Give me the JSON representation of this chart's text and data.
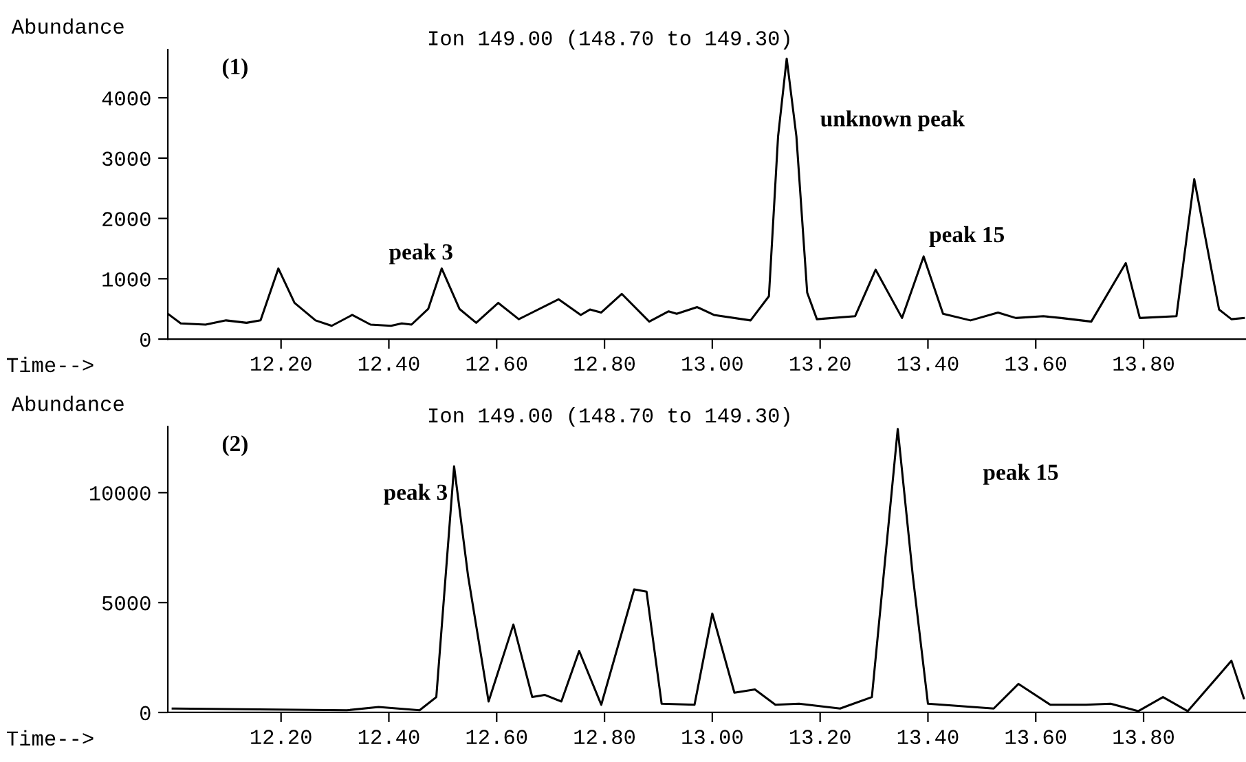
{
  "chart_data": [
    {
      "type": "line",
      "title": "Ion 149.00 (148.70 to 149.30)",
      "xlabel": "Time-->",
      "ylabel": "Abundance",
      "annotations": [
        "(1)",
        "peak 3",
        "unknown peak",
        "peak 15"
      ],
      "series": [
        {
          "color": "#000000",
          "x": [
            11.99,
            12.014,
            12.06,
            12.098,
            12.136,
            12.162,
            12.195,
            12.225,
            12.264,
            12.294,
            12.332,
            12.366,
            12.404,
            12.424,
            12.442,
            12.473,
            12.498,
            12.531,
            12.562,
            12.603,
            12.641,
            12.715,
            12.756,
            12.773,
            12.794,
            12.832,
            12.883,
            12.919,
            12.934,
            12.972,
            13.003,
            13.071,
            13.105,
            13.122,
            13.138,
            13.156,
            13.176,
            13.194,
            13.265,
            13.303,
            13.352,
            13.392,
            13.428,
            13.479,
            13.53,
            13.563,
            13.614,
            13.647,
            13.703,
            13.767,
            13.793,
            13.861,
            13.894,
            13.94,
            13.963,
            13.986
          ],
          "values": [
            420,
            260,
            240,
            310,
            270,
            310,
            1170,
            600,
            310,
            220,
            400,
            240,
            220,
            260,
            240,
            500,
            1170,
            500,
            270,
            600,
            330,
            660,
            400,
            490,
            440,
            750,
            290,
            460,
            420,
            530,
            400,
            310,
            710,
            3360,
            4650,
            3360,
            770,
            330,
            380,
            1150,
            350,
            1370,
            420,
            310,
            440,
            350,
            380,
            350,
            290,
            1260,
            350,
            380,
            2650,
            490,
            330,
            350
          ]
        }
      ],
      "xlim": [
        11.99,
        13.99
      ],
      "xticks": [
        {
          "value": 12.2,
          "label": "12.20"
        },
        {
          "value": 12.4,
          "label": "12.40"
        },
        {
          "value": 12.6,
          "label": "12.60"
        },
        {
          "value": 12.8,
          "label": "12.80"
        },
        {
          "value": 13.0,
          "label": "13.00"
        },
        {
          "value": 13.2,
          "label": "13.20"
        },
        {
          "value": 13.4,
          "label": "13.40"
        },
        {
          "value": 13.6,
          "label": "13.60"
        },
        {
          "value": 13.8,
          "label": "13.80"
        }
      ],
      "ylim": [
        0,
        4800
      ],
      "yticks": [
        0,
        1000,
        2000,
        3000,
        4000
      ],
      "grid": false,
      "legend": false
    },
    {
      "type": "line",
      "title": "Ion 149.00 (148.70 to 149.30)",
      "xlabel": "Time-->",
      "ylabel": "Abundance",
      "annotations": [
        "(2)",
        "peak 3",
        "peak 15"
      ],
      "series": [
        {
          "color": "#000000",
          "x": [
            11.999,
            12.126,
            12.322,
            12.381,
            12.457,
            12.488,
            12.521,
            12.547,
            12.585,
            12.631,
            12.666,
            12.689,
            12.72,
            12.753,
            12.794,
            12.855,
            12.878,
            12.906,
            12.967,
            13.0,
            13.041,
            13.079,
            13.117,
            13.161,
            13.237,
            13.296,
            13.344,
            13.372,
            13.4,
            13.522,
            13.568,
            13.627,
            13.693,
            13.739,
            13.79,
            13.836,
            13.882,
            13.963,
            13.986
          ],
          "values": [
            180,
            150,
            100,
            250,
            100,
            700,
            11200,
            6200,
            500,
            4000,
            700,
            800,
            500,
            2800,
            350,
            5600,
            5500,
            400,
            350,
            4500,
            900,
            1050,
            350,
            400,
            180,
            700,
            12900,
            6200,
            400,
            180,
            1300,
            350,
            350,
            400,
            60,
            700,
            60,
            2350,
            650
          ]
        }
      ],
      "xlim": [
        11.99,
        13.99
      ],
      "xticks": [
        {
          "value": 12.2,
          "label": "12.20"
        },
        {
          "value": 12.4,
          "label": "12.40"
        },
        {
          "value": 12.6,
          "label": "12.60"
        },
        {
          "value": 12.8,
          "label": "12.80"
        },
        {
          "value": 13.0,
          "label": "13.00"
        },
        {
          "value": 13.2,
          "label": "13.20"
        },
        {
          "value": 13.4,
          "label": "13.40"
        },
        {
          "value": 13.6,
          "label": "13.60"
        },
        {
          "value": 13.8,
          "label": "13.80"
        }
      ],
      "ylim": [
        0,
        13000
      ],
      "yticks": [
        0,
        5000,
        10000
      ],
      "grid": false,
      "legend": false
    }
  ]
}
